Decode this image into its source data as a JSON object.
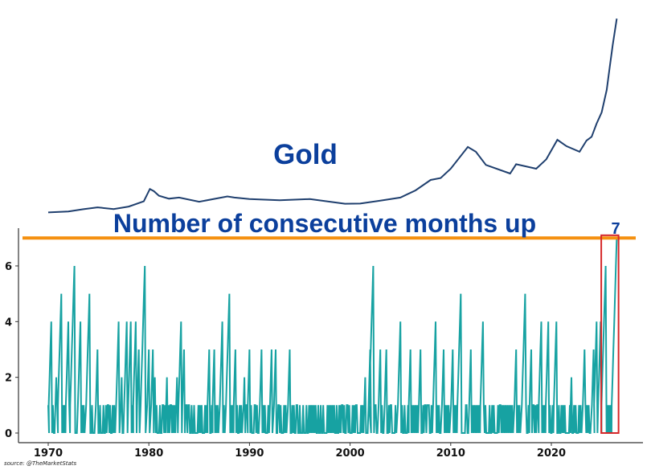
{
  "chart_data": [
    {
      "type": "line",
      "title": "Gold",
      "color": "#1f3f6e",
      "axes_visible": false,
      "xlim": [
        1970,
        2026.5
      ],
      "points": [
        [
          1970,
          35
        ],
        [
          1972,
          60
        ],
        [
          1973.5,
          120
        ],
        [
          1974.9,
          170
        ],
        [
          1976.5,
          125
        ],
        [
          1978,
          190
        ],
        [
          1979.5,
          330
        ],
        [
          1980.1,
          660
        ],
        [
          1980.5,
          600
        ],
        [
          1981,
          480
        ],
        [
          1982,
          400
        ],
        [
          1983,
          430
        ],
        [
          1985,
          320
        ],
        [
          1987.8,
          460
        ],
        [
          1988.5,
          430
        ],
        [
          1990,
          390
        ],
        [
          1993,
          360
        ],
        [
          1996,
          390
        ],
        [
          1999.5,
          265
        ],
        [
          2001,
          270
        ],
        [
          2003,
          350
        ],
        [
          2005,
          430
        ],
        [
          2006.5,
          620
        ],
        [
          2008,
          900
        ],
        [
          2009,
          950
        ],
        [
          2010,
          1200
        ],
        [
          2011.7,
          1780
        ],
        [
          2012.5,
          1650
        ],
        [
          2013.5,
          1300
        ],
        [
          2015.9,
          1070
        ],
        [
          2016.5,
          1320
        ],
        [
          2018.5,
          1200
        ],
        [
          2019.5,
          1450
        ],
        [
          2020.6,
          1970
        ],
        [
          2021.5,
          1800
        ],
        [
          2022.8,
          1650
        ],
        [
          2023.5,
          1950
        ],
        [
          2024,
          2050
        ],
        [
          2024.5,
          2400
        ],
        [
          2025,
          2700
        ],
        [
          2025.5,
          3300
        ],
        [
          2025.8,
          3900
        ],
        [
          2026.1,
          4500
        ],
        [
          2026.5,
          5200
        ]
      ]
    },
    {
      "type": "line",
      "title": "Number of consecutive months up",
      "color": "#17a2a2",
      "xlim": [
        1967,
        2028.5
      ],
      "ylim": [
        -0.3,
        7.3
      ],
      "xticks": [
        1970,
        1980,
        1990,
        2000,
        2010,
        2020
      ],
      "yticks": [
        0,
        2,
        4,
        6
      ],
      "grid": false,
      "threshold_line": {
        "value": 7,
        "color": "#f5900f"
      },
      "highlight": {
        "label": "7",
        "x_range": [
          2025.2,
          2026.6
        ],
        "color": "#d62728"
      },
      "run_peaks": [
        [
          1970.3,
          4
        ],
        [
          1970.8,
          2
        ],
        [
          1971.3,
          5
        ],
        [
          1972.0,
          4
        ],
        [
          1972.6,
          6
        ],
        [
          1973.2,
          4
        ],
        [
          1974.1,
          5
        ],
        [
          1974.9,
          3
        ],
        [
          1977.0,
          4
        ],
        [
          1977.3,
          2
        ],
        [
          1977.8,
          4
        ],
        [
          1978.2,
          4
        ],
        [
          1978.7,
          4
        ],
        [
          1979.0,
          3
        ],
        [
          1979.6,
          6
        ],
        [
          1980.0,
          3
        ],
        [
          1980.4,
          3
        ],
        [
          1980.6,
          2
        ],
        [
          1981.8,
          2
        ],
        [
          1982.8,
          2
        ],
        [
          1983.2,
          4
        ],
        [
          1983.5,
          3
        ],
        [
          1986.0,
          3
        ],
        [
          1986.5,
          3
        ],
        [
          1987.3,
          4
        ],
        [
          1988.0,
          5
        ],
        [
          1988.6,
          3
        ],
        [
          1989.5,
          2
        ],
        [
          1990.0,
          3
        ],
        [
          1991.2,
          3
        ],
        [
          1992.2,
          3
        ],
        [
          1992.6,
          3
        ],
        [
          1994.0,
          3
        ],
        [
          1999.0,
          1
        ],
        [
          2001.5,
          2
        ],
        [
          2002.0,
          3
        ],
        [
          2002.3,
          6
        ],
        [
          2003.0,
          3
        ],
        [
          2003.6,
          3
        ],
        [
          2005.0,
          4
        ],
        [
          2006.0,
          3
        ],
        [
          2007.0,
          3
        ],
        [
          2008.5,
          4
        ],
        [
          2009.3,
          3
        ],
        [
          2010.2,
          3
        ],
        [
          2011.0,
          5
        ],
        [
          2012.0,
          3
        ],
        [
          2013.2,
          4
        ],
        [
          2016.5,
          3
        ],
        [
          2017.4,
          5
        ],
        [
          2018.0,
          3
        ],
        [
          2019.0,
          4
        ],
        [
          2019.7,
          4
        ],
        [
          2020.5,
          4
        ],
        [
          2022.0,
          2
        ],
        [
          2023.3,
          3
        ],
        [
          2024.2,
          3
        ],
        [
          2024.5,
          4
        ],
        [
          2024.9,
          4
        ],
        [
          2025.4,
          6
        ],
        [
          2026.5,
          7
        ]
      ]
    }
  ],
  "source": "source: @TheMarketStats"
}
